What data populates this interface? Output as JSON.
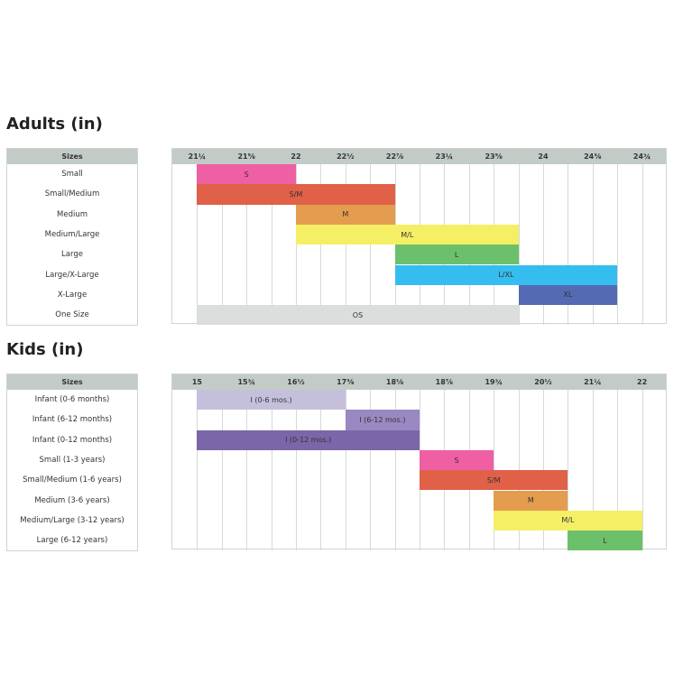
{
  "chart_data": [
    {
      "type": "table",
      "title": "Adults (in)",
      "sizes_header": "Sizes",
      "columns": [
        "21¼",
        "21⅝",
        "22",
        "22½",
        "22⅞",
        "23¼",
        "23⅝",
        "24",
        "24⅜",
        "24¾"
      ],
      "rows": [
        {
          "label": "Small",
          "bar": "S",
          "start": 1,
          "end": 5,
          "color": "#ee5fa4"
        },
        {
          "label": "Small/Medium",
          "bar": "S/M",
          "start": 1,
          "end": 9,
          "color": "#e06048"
        },
        {
          "label": "Medium",
          "bar": "M",
          "start": 5,
          "end": 9,
          "color": "#e49c4f"
        },
        {
          "label": "Medium/Large",
          "bar": "M/L",
          "start": 5,
          "end": 14,
          "color": "#f5ef65"
        },
        {
          "label": "Large",
          "bar": "L",
          "start": 9,
          "end": 14,
          "color": "#6cc06c"
        },
        {
          "label": "Large/X-Large",
          "bar": "L/XL",
          "start": 9,
          "end": 18,
          "color": "#36bdf0"
        },
        {
          "label": "X-Large",
          "bar": "XL",
          "start": 14,
          "end": 18,
          "color": "#546ab2"
        },
        {
          "label": "One Size",
          "bar": "OS",
          "start": 1,
          "end": 14,
          "color": "#dcdedd"
        }
      ]
    },
    {
      "type": "table",
      "title": "Kids (in)",
      "sizes_header": "Sizes",
      "columns": [
        "15",
        "15¾",
        "16½",
        "17⅜",
        "18⅛",
        "18⅞",
        "19¾",
        "20½",
        "21¼",
        "22"
      ],
      "rows": [
        {
          "label": "Infant (0-6 months)",
          "bar": "I (0-6 mos.)",
          "start": 1,
          "end": 7,
          "color": "#c6bfdc"
        },
        {
          "label": "Infant (6-12 months)",
          "bar": "I (6-12 mos.)",
          "start": 7,
          "end": 10,
          "color": "#9a88c2"
        },
        {
          "label": "Infant (0-12 months)",
          "bar": "I (0-12 mos.)",
          "start": 1,
          "end": 10,
          "color": "#7a66a8"
        },
        {
          "label": "Small (1-3 years)",
          "bar": "S",
          "start": 10,
          "end": 13,
          "color": "#ee5fa4"
        },
        {
          "label": "Small/Medium (1-6 years)",
          "bar": "S/M",
          "start": 10,
          "end": 16,
          "color": "#e06048"
        },
        {
          "label": "Medium (3-6 years)",
          "bar": "M",
          "start": 13,
          "end": 16,
          "color": "#e49c4f"
        },
        {
          "label": "Medium/Large (3-12 years)",
          "bar": "M/L",
          "start": 13,
          "end": 19,
          "color": "#f5ef65"
        },
        {
          "label": "Large (6-12 years)",
          "bar": "L",
          "start": 16,
          "end": 19,
          "color": "#6cc06c"
        }
      ]
    }
  ]
}
